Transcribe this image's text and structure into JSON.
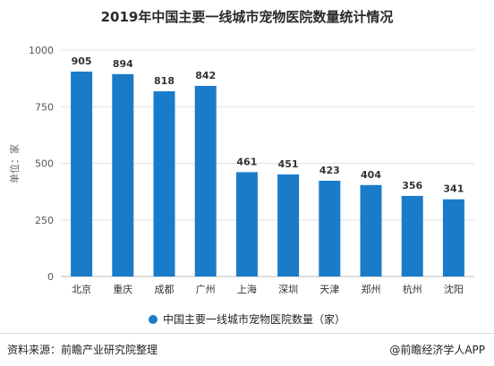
{
  "chart_data": {
    "type": "bar",
    "title": "2019年中国主要一线城市宠物医院数量统计情况",
    "ylabel": "单位：家",
    "ylim": [
      0,
      1000
    ],
    "yticks": [
      0,
      250,
      500,
      750,
      1000
    ],
    "categories": [
      "北京",
      "重庆",
      "成都",
      "广州",
      "上海",
      "深圳",
      "天津",
      "郑州",
      "杭州",
      "沈阳"
    ],
    "series": [
      {
        "name": "中国主要一线城市宠物医院数量（家）",
        "values": [
          905,
          894,
          818,
          842,
          461,
          451,
          423,
          404,
          356,
          341
        ]
      }
    ],
    "bar_color": "#1a7bc9",
    "grid": true,
    "legend_position": "bottom"
  },
  "footer": {
    "source": "资料来源：前瞻产业研究院整理",
    "brand": "@前瞻经济学人APP"
  }
}
